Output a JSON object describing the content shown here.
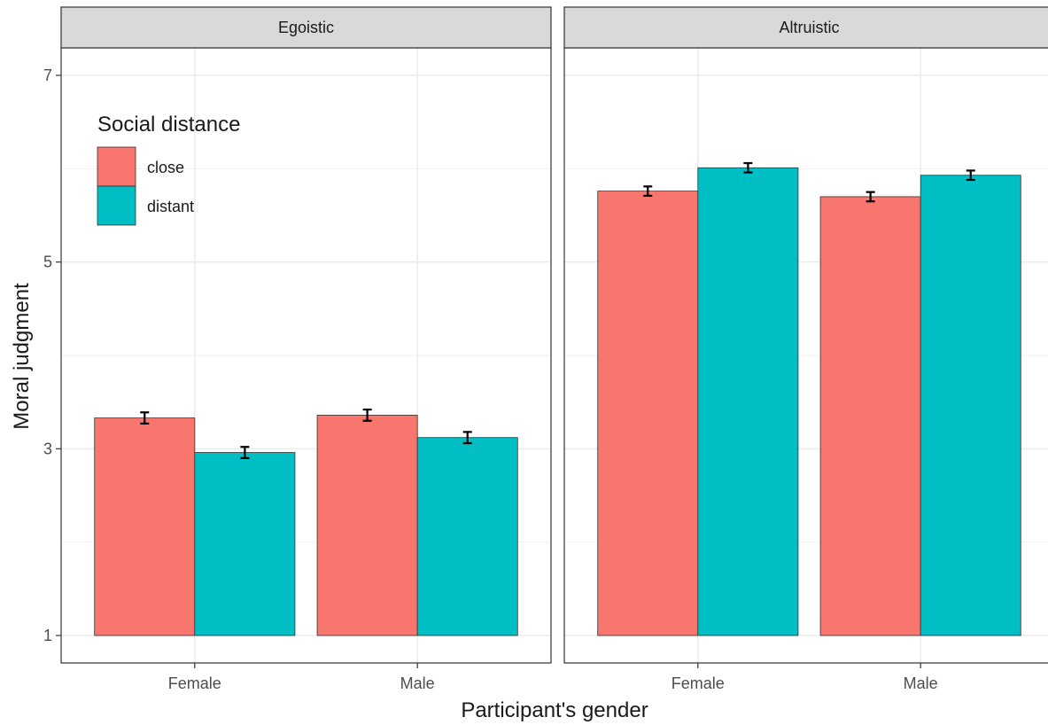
{
  "chart_data": {
    "type": "bar",
    "xlabel": "Participant's gender",
    "ylabel": "Moral judgment",
    "ylim": [
      1,
      7
    ],
    "y_ticks": [
      1,
      3,
      5,
      7
    ],
    "categories": [
      "Female",
      "Male"
    ],
    "grid": true,
    "legend": {
      "title": "Social distance",
      "position": "top-left",
      "entries": [
        {
          "label": "close",
          "color": "#F8766D"
        },
        {
          "label": "distant",
          "color": "#00BFC4"
        }
      ]
    },
    "panels": [
      {
        "title": "Egoistic",
        "series": [
          {
            "name": "close",
            "color": "#F8766D",
            "values": [
              3.33,
              3.36
            ],
            "error": [
              0.06,
              0.06
            ]
          },
          {
            "name": "distant",
            "color": "#00BFC4",
            "values": [
              2.96,
              3.12
            ],
            "error": [
              0.06,
              0.06
            ]
          }
        ]
      },
      {
        "title": "Altruistic",
        "series": [
          {
            "name": "close",
            "color": "#F8766D",
            "values": [
              5.76,
              5.7
            ],
            "error": [
              0.05,
              0.05
            ]
          },
          {
            "name": "distant",
            "color": "#00BFC4",
            "values": [
              6.01,
              5.93
            ],
            "error": [
              0.05,
              0.05
            ]
          }
        ]
      }
    ]
  }
}
